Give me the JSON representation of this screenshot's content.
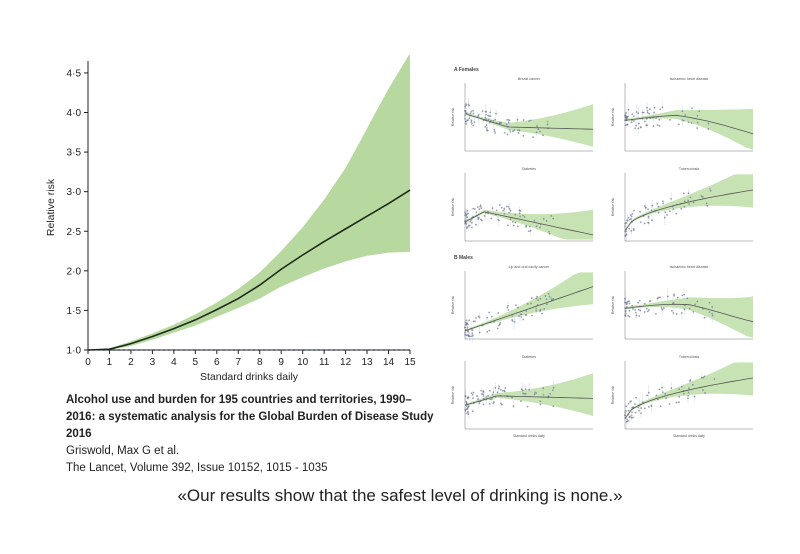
{
  "chart_data": {
    "type": "area",
    "xlabel": "Standard drinks daily",
    "ylabel": "Relative risk",
    "xlim": [
      0,
      15
    ],
    "ylim": [
      1.0,
      4.6
    ],
    "x_ticks": [
      "0",
      "1",
      "2",
      "3",
      "4",
      "5",
      "6",
      "7",
      "8",
      "9",
      "10",
      "11",
      "12",
      "13",
      "14",
      "15"
    ],
    "y_ticks": [
      "1·0",
      "1·5",
      "2·0",
      "2·5",
      "3·0",
      "3·5",
      "4·0",
      "4·5"
    ],
    "reference_line": 1.0,
    "series": [
      {
        "type": "line",
        "x": [
          0,
          1,
          2,
          3,
          4,
          5,
          6,
          7,
          8,
          9,
          10,
          11,
          12,
          13,
          14,
          15
        ],
        "y": [
          1.0,
          1.01,
          1.08,
          1.17,
          1.27,
          1.38,
          1.51,
          1.65,
          1.82,
          2.02,
          2.2,
          2.37,
          2.53,
          2.69,
          2.85,
          3.02
        ]
      },
      {
        "type": "band",
        "x": [
          0,
          1,
          2,
          3,
          4,
          5,
          6,
          7,
          8,
          9,
          10,
          11,
          12,
          13,
          14,
          15
        ],
        "upper": [
          1.0,
          1.02,
          1.11,
          1.21,
          1.32,
          1.45,
          1.6,
          1.77,
          1.98,
          2.25,
          2.55,
          2.9,
          3.3,
          3.8,
          4.3,
          4.75
        ],
        "lower": [
          1.0,
          1.0,
          1.05,
          1.13,
          1.22,
          1.31,
          1.42,
          1.53,
          1.65,
          1.8,
          1.92,
          2.03,
          2.12,
          2.19,
          2.23,
          2.24
        ]
      }
    ],
    "colors": {
      "band": "#b7d9a0",
      "line": "#1f2b1a",
      "reference": "#2e4fa8",
      "axis": "#222222"
    }
  },
  "small_panels": {
    "section_a": "A  Females",
    "section_b": "B  Males",
    "titles": [
      "Breast cancer",
      "Ischaemic heart disease",
      "Diabetes",
      "Tuberculosis",
      "Lip and oral cavity cancer",
      "Ischaemic heart disease",
      "Diabetes",
      "Tuberculosis"
    ],
    "ylabel": "Relative risk",
    "xlabel": "Standard drinks daily",
    "colors": {
      "band": "#c7e3b4",
      "line": "#555555",
      "dots": "#6a7590"
    }
  },
  "citation": {
    "title": "Alcohol use and burden for 195 countries and territories, 1990–2016: a systematic analysis for the Global Burden of Disease Study 2016",
    "authors": "Griswold, Max G et al.",
    "journal": "The Lancet, Volume 392, Issue 10152, 1015 - 1035"
  },
  "quote": "«Our results show that the safest level of drinking is none.»"
}
